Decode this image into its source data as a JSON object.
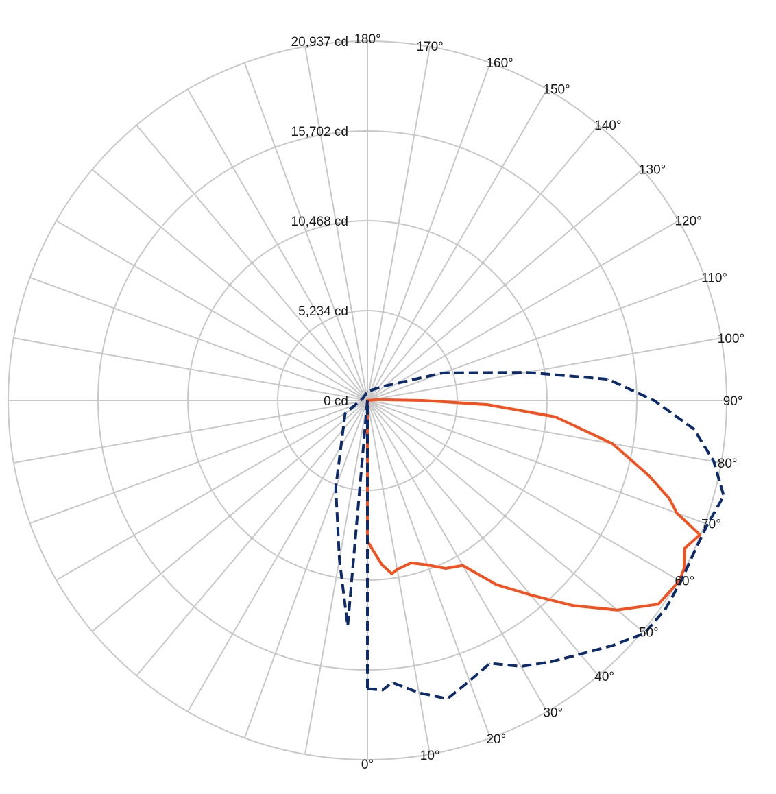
{
  "chart_data": {
    "type": "polar_line",
    "title": "",
    "angle_unit": "°",
    "angle_range": [
      0,
      180
    ],
    "angle_ticks": [
      {
        "deg": 0,
        "label": "0°"
      },
      {
        "deg": 10,
        "label": "10°"
      },
      {
        "deg": 20,
        "label": "20°"
      },
      {
        "deg": 30,
        "label": "30°"
      },
      {
        "deg": 40,
        "label": "40°"
      },
      {
        "deg": 50,
        "label": "50°"
      },
      {
        "deg": 60,
        "label": "60°"
      },
      {
        "deg": 70,
        "label": "70°"
      },
      {
        "deg": 80,
        "label": "80°"
      },
      {
        "deg": 90,
        "label": "90°"
      },
      {
        "deg": 100,
        "label": "100°"
      },
      {
        "deg": 110,
        "label": "110°"
      },
      {
        "deg": 120,
        "label": "120°"
      },
      {
        "deg": 130,
        "label": "130°"
      },
      {
        "deg": 140,
        "label": "140°"
      },
      {
        "deg": 150,
        "label": "150°"
      },
      {
        "deg": 160,
        "label": "160°"
      },
      {
        "deg": 170,
        "label": "170°"
      },
      {
        "deg": 180,
        "label": "180°"
      }
    ],
    "radial_range": [
      0,
      20937
    ],
    "radial_ticks": [
      {
        "value": 0,
        "label": "0 cd"
      },
      {
        "value": 5234,
        "label": "5,234 cd"
      },
      {
        "value": 10468,
        "label": "10,468 cd"
      },
      {
        "value": 15702,
        "label": "15,702 cd"
      },
      {
        "value": 20937,
        "label": "20,937 cd"
      }
    ],
    "grid": true,
    "legend": "none",
    "series": [
      {
        "color": "#f4511e",
        "style": "solid",
        "angles": [
          0,
          5,
          8,
          10,
          15,
          20,
          25,
          30,
          35,
          40,
          45,
          50,
          55,
          60,
          62,
          65,
          68,
          70,
          72,
          75,
          80,
          85,
          88,
          90,
          95
        ],
        "values": [
          8200,
          9600,
          10200,
          10000,
          9800,
          10200,
          10800,
          11100,
          13100,
          14800,
          16900,
          19000,
          20700,
          21000,
          20900,
          20400,
          20900,
          19200,
          18500,
          17000,
          14500,
          11000,
          7000,
          3200,
          600
        ]
      },
      {
        "color": "#0d2b6b",
        "style": "dashed",
        "angles": [
          0,
          3,
          5,
          10,
          15,
          20,
          25,
          30,
          35,
          40,
          45,
          50,
          55,
          60,
          65,
          70,
          75,
          80,
          85,
          90,
          95,
          100,
          110,
          130,
          150,
          170,
          180,
          190,
          200,
          220,
          250,
          300,
          340,
          350,
          355
        ],
        "values": [
          16800,
          16900,
          16500,
          17300,
          18000,
          17400,
          16900,
          17900,
          18600,
          19300,
          20200,
          21100,
          21200,
          21100,
          21000,
          21100,
          21500,
          20500,
          19100,
          16700,
          14100,
          9400,
          4700,
          1300,
          750,
          550,
          550,
          450,
          350,
          300,
          300,
          1500,
          5400,
          9400,
          13200
        ]
      }
    ]
  }
}
